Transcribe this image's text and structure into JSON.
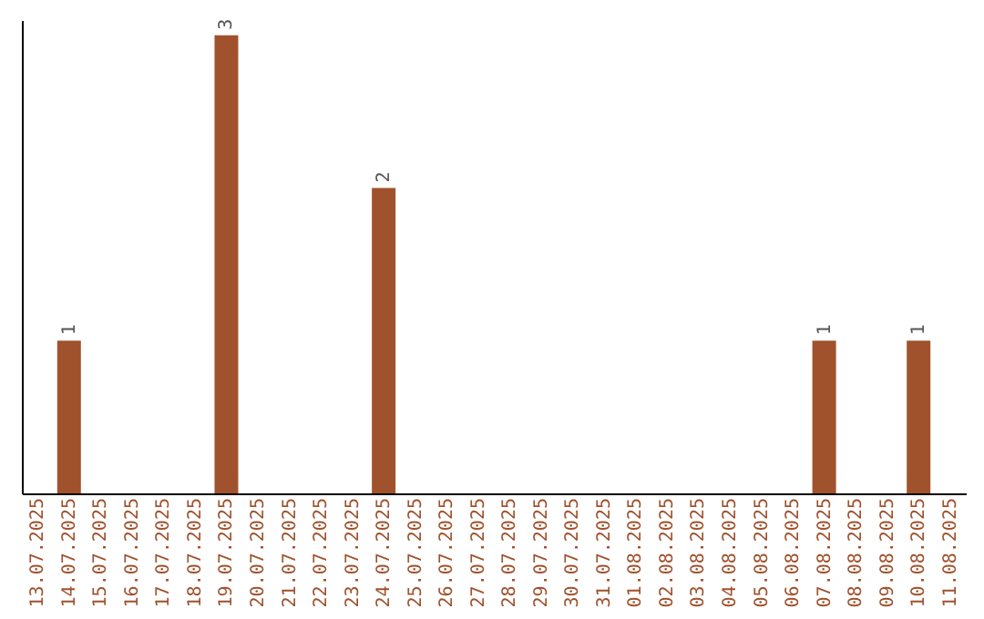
{
  "chart_data": {
    "type": "bar",
    "categories": [
      "13.07.2025",
      "14.07.2025",
      "15.07.2025",
      "16.07.2025",
      "17.07.2025",
      "18.07.2025",
      "19.07.2025",
      "20.07.2025",
      "21.07.2025",
      "22.07.2025",
      "23.07.2025",
      "24.07.2025",
      "25.07.2025",
      "26.07.2025",
      "27.07.2025",
      "28.07.2025",
      "29.07.2025",
      "30.07.2025",
      "31.07.2025",
      "01.08.2025",
      "02.08.2025",
      "03.08.2025",
      "04.08.2025",
      "05.08.2025",
      "06.08.2025",
      "07.08.2025",
      "08.08.2025",
      "09.08.2025",
      "10.08.2025",
      "11.08.2025"
    ],
    "values": [
      0,
      1,
      0,
      0,
      0,
      0,
      3,
      0,
      0,
      0,
      0,
      2,
      0,
      0,
      0,
      0,
      0,
      0,
      0,
      0,
      0,
      0,
      0,
      0,
      0,
      1,
      0,
      0,
      1,
      0
    ],
    "value_labels": [
      null,
      "1",
      null,
      null,
      null,
      null,
      "3",
      null,
      null,
      null,
      null,
      "2",
      null,
      null,
      null,
      null,
      null,
      null,
      null,
      null,
      null,
      null,
      null,
      null,
      null,
      "1",
      null,
      null,
      "1",
      null
    ],
    "color": "#a0522d",
    "ylim": [
      0,
      3.1
    ],
    "tick_labels": "x",
    "grid": false
  }
}
